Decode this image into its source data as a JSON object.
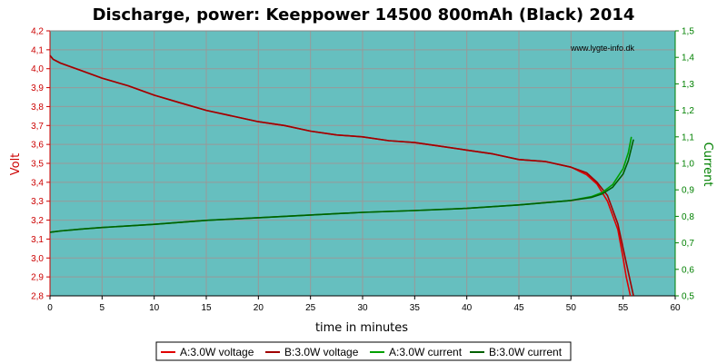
{
  "chart_data": {
    "type": "line",
    "title": "Discharge, power: Keeppower 14500 800mAh (Black) 2014",
    "watermark": "www.lygte-info.dk",
    "xlabel": "time in minutes",
    "ylabel_left": "Volt",
    "ylabel_right": "Current",
    "xlim": [
      0,
      60
    ],
    "ylim_left": [
      2.8,
      4.2
    ],
    "ylim_right": [
      0.5,
      1.5
    ],
    "x_ticks": [
      "0",
      "5",
      "10",
      "15",
      "20",
      "25",
      "30",
      "35",
      "40",
      "45",
      "50",
      "55",
      "60"
    ],
    "y_left_ticks": [
      "2,8",
      "2,9",
      "3,0",
      "3,1",
      "3,2",
      "3,3",
      "3,4",
      "3,5",
      "3,6",
      "3,7",
      "3,8",
      "3,9",
      "4,0",
      "4,1",
      "4,2"
    ],
    "y_right_ticks": [
      "0,5",
      "0,6",
      "0,7",
      "0,8",
      "0,9",
      "1,0",
      "1,1",
      "1,2",
      "1,3",
      "1,4",
      "1,5"
    ],
    "grid": true,
    "legend_position": "bottom",
    "colors": {
      "plot_bg": "#66bfbf",
      "grid": "#999999",
      "left_axis": "#cc0000",
      "right_axis": "#008000",
      "voltage_a": "#e00000",
      "voltage_b": "#a00000",
      "current_a": "#00a000",
      "current_b": "#006000"
    },
    "series": [
      {
        "name": "A:3.0W voltage",
        "axis": "left",
        "color": "#e00000",
        "x": [
          0,
          0.3,
          1,
          2,
          3,
          5,
          7.5,
          10,
          12.5,
          15,
          17.5,
          20,
          22.5,
          25,
          27.5,
          30,
          32.5,
          35,
          37.5,
          40,
          42.5,
          45,
          47.5,
          50,
          51.5,
          52.5,
          53.5,
          54.5,
          55,
          55.3,
          55.5,
          55.7
        ],
        "y": [
          4.07,
          4.05,
          4.03,
          4.01,
          3.99,
          3.95,
          3.91,
          3.86,
          3.82,
          3.78,
          3.75,
          3.72,
          3.7,
          3.67,
          3.65,
          3.64,
          3.62,
          3.61,
          3.59,
          3.57,
          3.55,
          3.52,
          3.51,
          3.48,
          3.44,
          3.39,
          3.3,
          3.15,
          3.0,
          2.9,
          2.85,
          2.8
        ]
      },
      {
        "name": "B:3.0W voltage",
        "axis": "left",
        "color": "#a00000",
        "x": [
          0,
          0.3,
          1,
          2,
          3,
          5,
          7.5,
          10,
          12.5,
          15,
          17.5,
          20,
          22.5,
          25,
          27.5,
          30,
          32.5,
          35,
          37.5,
          40,
          42.5,
          45,
          47.5,
          50,
          51.5,
          52.5,
          53.5,
          54.5,
          55.2,
          55.6,
          55.8,
          56.0
        ],
        "y": [
          4.07,
          4.05,
          4.03,
          4.01,
          3.99,
          3.95,
          3.91,
          3.86,
          3.82,
          3.78,
          3.75,
          3.72,
          3.7,
          3.67,
          3.65,
          3.64,
          3.62,
          3.61,
          3.59,
          3.57,
          3.55,
          3.52,
          3.51,
          3.48,
          3.45,
          3.4,
          3.33,
          3.18,
          3.0,
          2.9,
          2.85,
          2.8
        ]
      },
      {
        "name": "A:3.0W current",
        "axis": "right",
        "color": "#00a000",
        "x": [
          0,
          1,
          3,
          5,
          10,
          15,
          20,
          25,
          30,
          35,
          40,
          45,
          50,
          52,
          53,
          54,
          55,
          55.5,
          55.8
        ],
        "y": [
          0.74,
          0.745,
          0.752,
          0.758,
          0.77,
          0.785,
          0.795,
          0.805,
          0.815,
          0.822,
          0.83,
          0.843,
          0.86,
          0.875,
          0.89,
          0.92,
          0.98,
          1.04,
          1.1
        ]
      },
      {
        "name": "B:3.0W current",
        "axis": "right",
        "color": "#006000",
        "x": [
          0,
          1,
          3,
          5,
          10,
          15,
          20,
          25,
          30,
          35,
          40,
          45,
          50,
          52,
          53,
          54,
          55,
          55.5,
          56.0
        ],
        "y": [
          0.74,
          0.745,
          0.752,
          0.758,
          0.77,
          0.785,
          0.795,
          0.805,
          0.815,
          0.822,
          0.83,
          0.843,
          0.86,
          0.872,
          0.885,
          0.91,
          0.96,
          1.01,
          1.09
        ]
      }
    ]
  }
}
